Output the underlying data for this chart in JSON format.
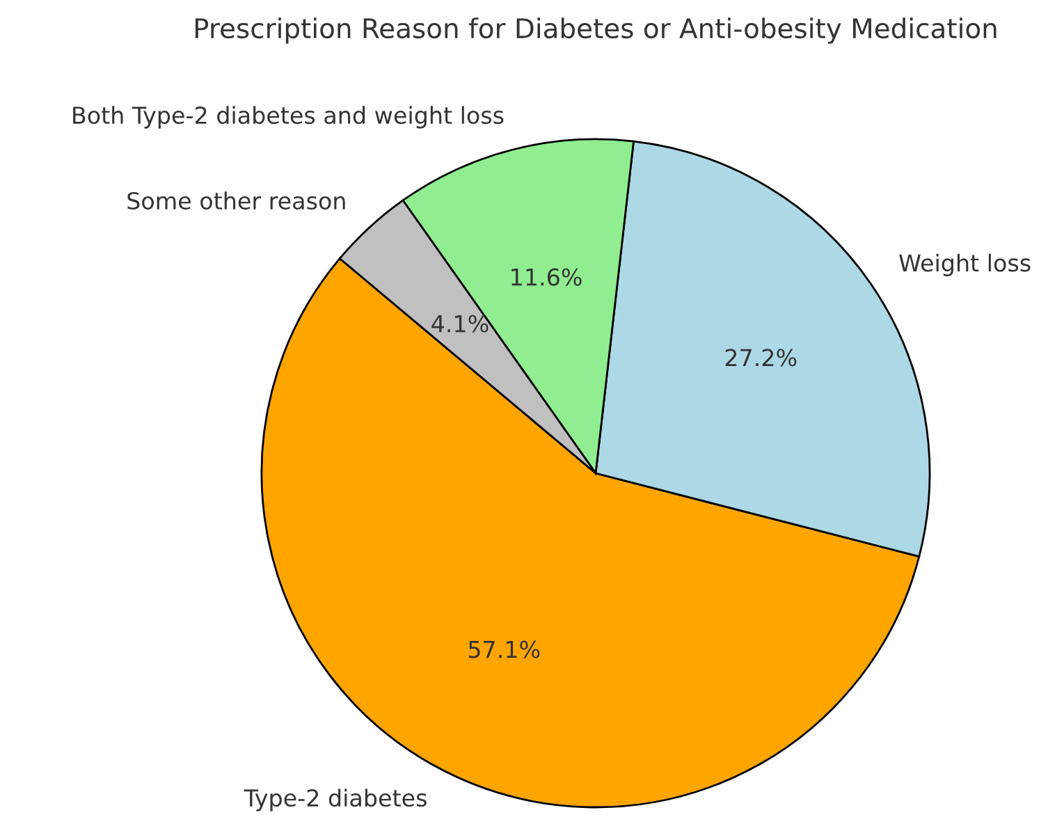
{
  "chart_data": {
    "type": "pie",
    "title": "Prescription Reason for Diabetes or Anti-obesity Medication",
    "categories": [
      "Type-2 diabetes",
      "Weight loss",
      "Both Type-2 diabetes and weight loss",
      "Some other reason"
    ],
    "values": [
      57.1,
      27.2,
      11.6,
      4.1
    ],
    "colors": [
      "#ffa500",
      "#add8e6",
      "#90ee90",
      "#c0c0c0"
    ],
    "value_labels": [
      "57.1%",
      "27.2%",
      "11.6%",
      "4.1%"
    ]
  }
}
